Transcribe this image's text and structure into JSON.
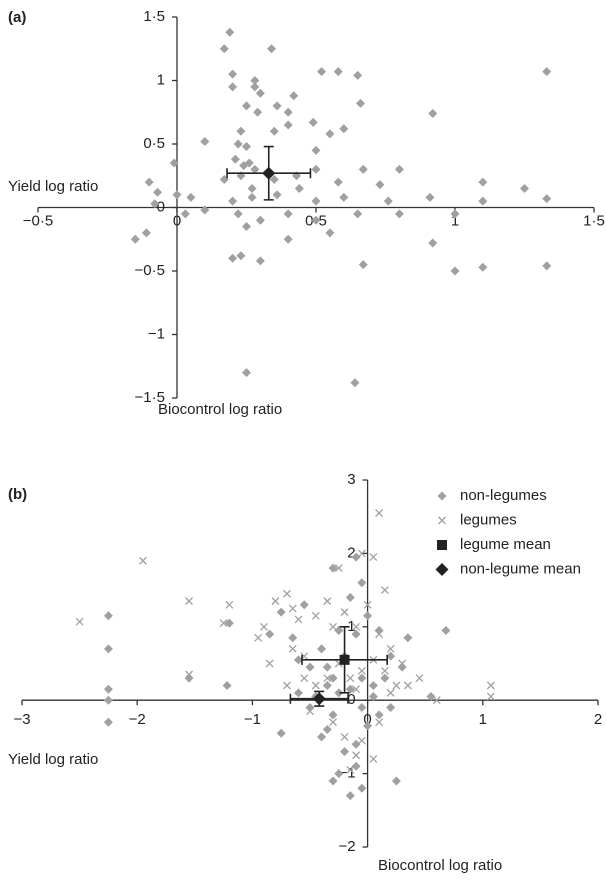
{
  "chart_data": [
    {
      "type": "scatter",
      "title": "(a)",
      "xlabel": "Biocontrol log ratio",
      "ylabel": "Yield log ratio",
      "xlim": [
        -0.5,
        1.5
      ],
      "ylim": [
        -1.5,
        1.5
      ],
      "xticks": [
        {
          "value": -0.5,
          "label": "−0·5"
        },
        0,
        {
          "value": 0.5,
          "label": "0·5"
        },
        1,
        {
          "value": 1.5,
          "label": "1·5"
        }
      ],
      "yticks": [
        {
          "value": -1.5,
          "label": "−1·5"
        },
        {
          "value": -1,
          "label": "−1"
        },
        {
          "value": -0.5,
          "label": "−0·5"
        },
        0,
        {
          "value": 0.5,
          "label": "0·5"
        },
        1,
        {
          "value": 1.5,
          "label": "1·5"
        }
      ],
      "series": [
        {
          "color": "#a0a0a0",
          "marker": "diamond",
          "x": [
            0.19,
            0.17,
            0.34,
            0.2,
            0.52,
            0.58,
            0.65,
            1.33,
            0.2,
            0.28,
            0.28,
            0.3,
            0.25,
            0.36,
            0.29,
            0.42,
            0.4,
            0.4,
            0.49,
            0.6,
            0.66,
            0.92,
            0.23,
            0.22,
            0.1,
            0.25,
            0.35,
            0.5,
            0.55,
            0.21,
            0.26,
            0.24,
            0.28,
            0.23,
            0.17,
            0.35,
            0.43,
            0.5,
            0.67,
            0.8,
            -0.01,
            -0.1,
            -0.07,
            0,
            0.05,
            0.27,
            0.44,
            0.58,
            0.73,
            0.76,
            0.2,
            0.27,
            0.36,
            0.5,
            0.6,
            0.91,
            1.1,
            1.25,
            1.33,
            1.1,
            -0.08,
            -0.11,
            -0.15,
            0.03,
            0.22,
            0.25,
            0.3,
            0.4,
            0.5,
            0.65,
            0.8,
            0.23,
            0.2,
            0.3,
            0.67,
            0.92,
            1.0,
            1.0,
            1.1,
            1.33,
            0.25,
            0.64,
            0.4,
            0.55,
            0.1
          ],
          "y": [
            1.38,
            1.25,
            1.25,
            1.05,
            1.07,
            1.07,
            1.04,
            1.07,
            0.95,
            1.0,
            0.95,
            0.9,
            0.8,
            0.8,
            0.75,
            0.88,
            0.75,
            0.65,
            0.67,
            0.62,
            0.82,
            0.74,
            0.6,
            0.5,
            0.52,
            0.48,
            0.6,
            0.45,
            0.58,
            0.38,
            0.35,
            0.33,
            0.3,
            0.25,
            0.22,
            0.22,
            0.25,
            0.3,
            0.3,
            0.3,
            0.35,
            0.2,
            0.12,
            0.1,
            0.08,
            0.15,
            0.15,
            0.2,
            0.18,
            0.05,
            0.05,
            0.08,
            0.1,
            0.05,
            0.08,
            0.08,
            0.2,
            0.15,
            0.07,
            0.05,
            0.03,
            -0.2,
            -0.25,
            -0.05,
            -0.05,
            -0.15,
            -0.1,
            -0.05,
            -0.1,
            -0.05,
            -0.05,
            -0.38,
            -0.4,
            -0.42,
            -0.45,
            -0.28,
            -0.05,
            -0.5,
            -0.47,
            -0.46,
            -1.3,
            -1.38,
            -0.25,
            -0.2,
            -0.02
          ]
        },
        {
          "color": "#222222",
          "marker": "diamond-big",
          "x": [
            0.33
          ],
          "y": [
            0.27
          ],
          "xerr": [
            0.15
          ],
          "yerr": [
            0.21
          ]
        }
      ]
    },
    {
      "type": "scatter",
      "title": "(b)",
      "xlabel": "Biocontrol log ratio",
      "ylabel": "Yield log ratio",
      "xlim": [
        -3,
        2
      ],
      "ylim": [
        -2,
        3
      ],
      "xticks": [
        {
          "value": -3,
          "label": "−3"
        },
        {
          "value": -2,
          "label": "−2"
        },
        {
          "value": -1,
          "label": "−1"
        },
        0,
        1,
        2
      ],
      "yticks": [
        {
          "value": -2,
          "label": "−2"
        },
        {
          "value": -1,
          "label": "−1"
        },
        0,
        1,
        2,
        3
      ],
      "series": [
        {
          "name": "non-legumes",
          "color": "#a0a0a0",
          "marker": "diamond",
          "x": [
            -2.25,
            -2.25,
            -2.25,
            -2.25,
            -2.25,
            -1.55,
            -1.22,
            -1.2,
            -0.85,
            -0.75,
            -0.65,
            -0.55,
            -0.3,
            -0.1,
            -0.15,
            -0.05,
            -0.25,
            -0.4,
            -0.5,
            -0.6,
            -0.35,
            -0.3,
            -0.2,
            -0.1,
            0.0,
            0.1,
            0.2,
            0.3,
            0.35,
            0.55,
            0.68,
            0.15,
            0.05,
            -0.05,
            -0.15,
            -0.25,
            -0.35,
            -0.45,
            -0.6,
            -0.75,
            -0.5,
            -0.35,
            -0.2,
            -0.1,
            -0.05,
            -0.15,
            -0.3,
            -0.25,
            -0.1,
            0.0,
            0.1,
            0.2,
            0.25,
            -0.05,
            -0.3,
            -0.4,
            0.05
          ],
          "y": [
            1.15,
            0.7,
            0.15,
            0.0,
            -0.3,
            0.3,
            0.2,
            1.05,
            0.9,
            1.2,
            0.85,
            1.3,
            1.8,
            1.95,
            1.4,
            1.6,
            0.95,
            0.7,
            0.45,
            0.55,
            0.45,
            0.3,
            0.6,
            0.9,
            1.15,
            0.95,
            0.6,
            0.45,
            0.85,
            0.05,
            0.95,
            0.3,
            0.2,
            0.3,
            0.15,
            0.1,
            0.2,
            0.05,
            0.1,
            -0.45,
            -0.1,
            -0.4,
            -0.7,
            -0.9,
            -1.2,
            -1.3,
            -1.1,
            -1.0,
            -0.6,
            -0.35,
            -0.2,
            -0.1,
            -1.1,
            -0.1,
            -0.2,
            -0.5,
            0.05
          ]
        },
        {
          "name": "legumes",
          "color": "#a0a0a0",
          "marker": "cross",
          "x": [
            -2.5,
            -1.95,
            -1.55,
            -1.55,
            -1.2,
            -1.25,
            -0.95,
            -0.9,
            -0.8,
            -0.65,
            -0.7,
            -0.6,
            -0.55,
            -0.45,
            -0.35,
            -0.3,
            -0.25,
            -0.2,
            -0.1,
            -0.05,
            0.05,
            0.1,
            0.15,
            0.0,
            0.1,
            0.2,
            0.3,
            0.45,
            0.6,
            1.07,
            1.07,
            0.25,
            0.15,
            0.05,
            -0.05,
            -0.15,
            -0.25,
            -0.35,
            -0.45,
            -0.55,
            -0.7,
            -0.5,
            -0.3,
            -0.2,
            -0.1,
            -0.15,
            0.05,
            -0.05,
            0.1,
            0.2,
            0.35,
            -0.1,
            -0.65,
            -0.85
          ],
          "y": [
            1.07,
            1.9,
            1.35,
            0.35,
            1.3,
            1.05,
            0.85,
            1.0,
            1.35,
            1.25,
            1.45,
            1.1,
            0.6,
            1.15,
            1.35,
            1.0,
            1.8,
            1.2,
            1.0,
            2.0,
            1.95,
            2.55,
            1.5,
            1.3,
            0.9,
            0.7,
            0.5,
            0.3,
            0.0,
            0.2,
            0.05,
            0.2,
            0.4,
            0.55,
            0.4,
            0.3,
            0.5,
            0.3,
            0.2,
            0.3,
            0.2,
            -0.15,
            -0.3,
            -0.5,
            -0.75,
            -0.95,
            -0.8,
            -0.55,
            -0.3,
            0.1,
            0.2,
            0.15,
            0.7,
            0.5
          ]
        },
        {
          "name": "legume mean",
          "color": "#222222",
          "marker": "square",
          "x": [
            -0.2
          ],
          "y": [
            0.55
          ],
          "xerr": [
            0.37
          ],
          "yerr": [
            0.45
          ]
        },
        {
          "name": "non-legume mean",
          "color": "#222222",
          "marker": "diamond-big",
          "x": [
            -0.42
          ],
          "y": [
            0.02
          ],
          "xerr": [
            0.25
          ],
          "yerr": [
            0.1
          ]
        }
      ]
    }
  ]
}
